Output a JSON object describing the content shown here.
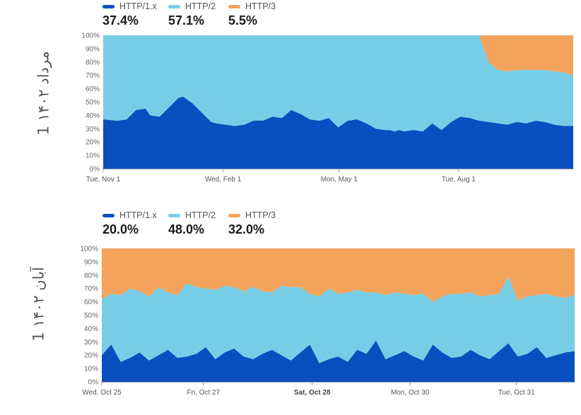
{
  "colors": {
    "http1": "#0a4fbf",
    "http2": "#78cde6",
    "http3": "#f3a35b",
    "axis": "#999999"
  },
  "chart_data": [
    {
      "type": "area",
      "side_label": "1 ۱۴۰۲ مرداد",
      "legend": [
        {
          "name": "HTTP/1.x",
          "value": "37.4%",
          "color": "#0a4fbf"
        },
        {
          "name": "HTTP/2",
          "value": "57.1%",
          "color": "#78cde6"
        },
        {
          "name": "HTTP/3",
          "value": "5.5%",
          "color": "#f3a35b"
        }
      ],
      "y_ticks": [
        "100%",
        "90%",
        "80%",
        "70%",
        "60%",
        "50%",
        "40%",
        "30%",
        "20%",
        "10%",
        "0%"
      ],
      "ylim": [
        0,
        100
      ],
      "x_ticks": [
        {
          "label": "Tue, Nov 1",
          "pos": 0.0,
          "bold": false
        },
        {
          "label": "Wed, Feb 1",
          "pos": 0.255,
          "bold": false
        },
        {
          "label": "Mon, May 1",
          "pos": 0.502,
          "bold": false
        },
        {
          "label": "Tue, Aug 1",
          "pos": 0.756,
          "bold": false
        }
      ],
      "x": [
        0,
        0.03,
        0.05,
        0.07,
        0.09,
        0.1,
        0.12,
        0.14,
        0.16,
        0.17,
        0.19,
        0.21,
        0.23,
        0.24,
        0.26,
        0.28,
        0.3,
        0.32,
        0.34,
        0.36,
        0.38,
        0.4,
        0.42,
        0.44,
        0.46,
        0.48,
        0.5,
        0.52,
        0.54,
        0.56,
        0.58,
        0.6,
        0.61,
        0.62,
        0.63,
        0.64,
        0.66,
        0.68,
        0.7,
        0.72,
        0.74,
        0.76,
        0.78,
        0.8,
        0.82,
        0.84,
        0.86,
        0.88,
        0.9,
        0.92,
        0.94,
        0.96,
        0.98,
        1.0
      ],
      "series": [
        {
          "name": "HTTP/1.x",
          "values": [
            37,
            36,
            37,
            44,
            45,
            40,
            39,
            46,
            53,
            54,
            49,
            42,
            35,
            34,
            33,
            32,
            33,
            36,
            36,
            39,
            38,
            44,
            41,
            37,
            36,
            38,
            31,
            36,
            37,
            34,
            30,
            29,
            29,
            28,
            29,
            28,
            29,
            28,
            34,
            29,
            35,
            39,
            38,
            36,
            35,
            34,
            33,
            35,
            34,
            36,
            35,
            33,
            32,
            32
          ]
        },
        {
          "name": "HTTP/2",
          "values": [
            63,
            64,
            63,
            56,
            55,
            60,
            61,
            54,
            47,
            46,
            51,
            58,
            65,
            66,
            67,
            68,
            67,
            64,
            64,
            61,
            62,
            56,
            59,
            63,
            64,
            62,
            69,
            64,
            63,
            66,
            70,
            71,
            71,
            72,
            71,
            72,
            71,
            72,
            66,
            71,
            65,
            61,
            62,
            64,
            45,
            40,
            40,
            39,
            40,
            38,
            39,
            40,
            40,
            38
          ]
        },
        {
          "name": "HTTP/3",
          "values": [
            0,
            0,
            0,
            0,
            0,
            0,
            0,
            0,
            0,
            0,
            0,
            0,
            0,
            0,
            0,
            0,
            0,
            0,
            0,
            0,
            0,
            0,
            0,
            0,
            0,
            0,
            0,
            0,
            0,
            0,
            0,
            0,
            0,
            0,
            0,
            0,
            0,
            0,
            0,
            0,
            0,
            0,
            0,
            0,
            20,
            26,
            27,
            26,
            26,
            26,
            26,
            27,
            28,
            30
          ]
        }
      ]
    },
    {
      "type": "area",
      "side_label": "1 ۱۴۰۲ آبان",
      "legend": [
        {
          "name": "HTTP/1.x",
          "value": "20.0%",
          "color": "#0a4fbf"
        },
        {
          "name": "HTTP/2",
          "value": "48.0%",
          "color": "#78cde6"
        },
        {
          "name": "HTTP/3",
          "value": "32.0%",
          "color": "#f3a35b"
        }
      ],
      "y_ticks": [
        "100%",
        "90%",
        "80%",
        "70%",
        "60%",
        "50%",
        "40%",
        "30%",
        "20%",
        "10%",
        "0%"
      ],
      "ylim": [
        0,
        100
      ],
      "x_ticks": [
        {
          "label": "Wed, Oct 25",
          "pos": 0.0,
          "bold": false
        },
        {
          "label": "Fri, Oct 27",
          "pos": 0.215,
          "bold": false
        },
        {
          "label": "Sat, Oct 28",
          "pos": 0.445,
          "bold": true
        },
        {
          "label": "Mon, Oct 30",
          "pos": 0.652,
          "bold": false
        },
        {
          "label": "Tue, Oct 31",
          "pos": 0.877,
          "bold": false
        }
      ],
      "x": [
        0,
        0.02,
        0.04,
        0.06,
        0.08,
        0.1,
        0.12,
        0.14,
        0.16,
        0.18,
        0.2,
        0.22,
        0.24,
        0.26,
        0.28,
        0.3,
        0.32,
        0.34,
        0.36,
        0.38,
        0.4,
        0.42,
        0.44,
        0.46,
        0.48,
        0.5,
        0.52,
        0.54,
        0.56,
        0.58,
        0.6,
        0.62,
        0.64,
        0.66,
        0.68,
        0.7,
        0.72,
        0.74,
        0.76,
        0.78,
        0.8,
        0.82,
        0.84,
        0.86,
        0.88,
        0.9,
        0.92,
        0.94,
        0.96,
        0.98,
        1.0
      ],
      "series": [
        {
          "name": "HTTP/1.x",
          "values": [
            20,
            28,
            15,
            18,
            22,
            16,
            20,
            24,
            18,
            19,
            21,
            26,
            17,
            22,
            25,
            19,
            17,
            21,
            24,
            20,
            16,
            22,
            28,
            14,
            17,
            19,
            15,
            24,
            21,
            31,
            17,
            20,
            23,
            19,
            16,
            28,
            22,
            18,
            19,
            24,
            20,
            17,
            23,
            29,
            19,
            21,
            26,
            18,
            20,
            22,
            23
          ]
        },
        {
          "name": "HTTP/2",
          "values": [
            42,
            38,
            50,
            52,
            46,
            48,
            51,
            43,
            47,
            55,
            50,
            44,
            52,
            50,
            46,
            49,
            54,
            47,
            43,
            52,
            55,
            49,
            38,
            50,
            53,
            47,
            52,
            45,
            46,
            36,
            48,
            47,
            43,
            46,
            50,
            32,
            42,
            48,
            47,
            43,
            44,
            48,
            43,
            50,
            42,
            43,
            39,
            48,
            44,
            41,
            42
          ]
        },
        {
          "name": "HTTP/3",
          "values": [
            38,
            34,
            35,
            30,
            32,
            36,
            29,
            33,
            35,
            26,
            29,
            30,
            31,
            28,
            29,
            32,
            29,
            32,
            33,
            28,
            29,
            29,
            34,
            36,
            30,
            34,
            33,
            31,
            33,
            33,
            35,
            33,
            34,
            35,
            34,
            40,
            36,
            34,
            34,
            33,
            36,
            35,
            34,
            21,
            39,
            36,
            35,
            34,
            36,
            37,
            35
          ]
        }
      ]
    }
  ]
}
